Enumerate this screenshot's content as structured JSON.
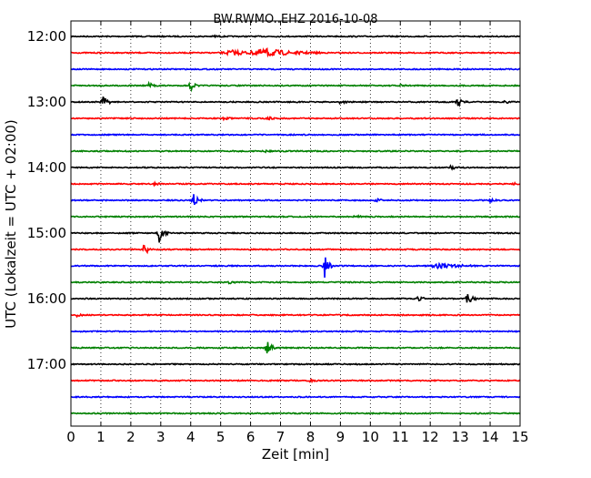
{
  "chart_data": {
    "type": "line",
    "subtype": "helicorder",
    "title": "BW.RWMO..EHZ 2016-10-08",
    "xlabel": "Zeit  [min]",
    "ylabel": "UTC (Lokalzeit = UTC + 02:00)",
    "xlim": [
      0,
      15
    ],
    "x_ticks": [
      "0",
      "1",
      "2",
      "3",
      "4",
      "5",
      "6",
      "7",
      "8",
      "9",
      "10",
      "11",
      "12",
      "13",
      "14",
      "15"
    ],
    "y_tick_labels": [
      "12:00",
      "13:00",
      "14:00",
      "15:00",
      "16:00",
      "17:00"
    ],
    "y_tick_rows": [
      0,
      4,
      8,
      12,
      16,
      20
    ],
    "rows_per_hour": 4,
    "minutes_per_row": 15,
    "grid": "vertical dotted",
    "colors": [
      "#000000",
      "#ff0000",
      "#0000ff",
      "#008000"
    ],
    "rows": [
      {
        "start": "12:00",
        "events": [
          {
            "minute": 4.8,
            "amp": 0.12
          }
        ]
      },
      {
        "start": "12:15",
        "events": [
          {
            "minute": 5.4,
            "amp": 0.25,
            "width": 0.6
          },
          {
            "minute": 6.5,
            "amp": 0.4,
            "width": 0.8
          }
        ]
      },
      {
        "start": "12:30",
        "events": []
      },
      {
        "start": "12:45",
        "events": [
          {
            "minute": 2.6,
            "amp": 0.3
          },
          {
            "minute": 4.0,
            "amp": 0.5
          },
          {
            "minute": 10.9,
            "amp": 0.2
          }
        ]
      },
      {
        "start": "13:00",
        "events": [
          {
            "minute": 1.05,
            "amp": 0.8
          },
          {
            "minute": 9.0,
            "amp": 0.2
          },
          {
            "minute": 12.9,
            "amp": 0.5
          },
          {
            "minute": 14.5,
            "amp": 0.2
          }
        ]
      },
      {
        "start": "13:15",
        "events": [
          {
            "minute": 5.1,
            "amp": 0.15
          },
          {
            "minute": 6.6,
            "amp": 0.15
          }
        ]
      },
      {
        "start": "13:30",
        "events": []
      },
      {
        "start": "13:45",
        "events": [
          {
            "minute": 6.5,
            "amp": 0.15
          }
        ]
      },
      {
        "start": "14:00",
        "events": [
          {
            "minute": 12.7,
            "amp": 0.25
          }
        ]
      },
      {
        "start": "14:15",
        "events": [
          {
            "minute": 2.8,
            "amp": 0.12
          },
          {
            "minute": 14.8,
            "amp": 0.15
          }
        ]
      },
      {
        "start": "14:30",
        "events": [
          {
            "minute": 4.1,
            "amp": 0.75
          },
          {
            "minute": 10.2,
            "amp": 0.2
          },
          {
            "minute": 14.0,
            "amp": 0.15
          }
        ]
      },
      {
        "start": "14:45",
        "events": [
          {
            "minute": 9.5,
            "amp": 0.15
          }
        ]
      },
      {
        "start": "15:00",
        "events": [
          {
            "minute": 2.95,
            "amp": 1.0
          }
        ]
      },
      {
        "start": "15:15",
        "events": [
          {
            "minute": 2.45,
            "amp": 0.7
          }
        ]
      },
      {
        "start": "15:30",
        "events": [
          {
            "minute": 8.45,
            "amp": 1.7
          },
          {
            "minute": 12.3,
            "amp": 0.3,
            "width": 0.5
          }
        ]
      },
      {
        "start": "15:45",
        "events": [
          {
            "minute": 5.3,
            "amp": 0.12
          }
        ]
      },
      {
        "start": "16:00",
        "events": [
          {
            "minute": 11.6,
            "amp": 0.25
          },
          {
            "minute": 13.25,
            "amp": 0.7
          }
        ]
      },
      {
        "start": "16:15",
        "events": [
          {
            "minute": 0.2,
            "amp": 0.15
          }
        ]
      },
      {
        "start": "16:30",
        "events": []
      },
      {
        "start": "16:45",
        "events": [
          {
            "minute": 6.55,
            "amp": 0.9
          }
        ]
      },
      {
        "start": "17:00",
        "events": []
      },
      {
        "start": "17:15",
        "events": [
          {
            "minute": 8.0,
            "amp": 0.12
          }
        ]
      },
      {
        "start": "17:30",
        "events": []
      },
      {
        "start": "17:45",
        "events": []
      }
    ]
  }
}
